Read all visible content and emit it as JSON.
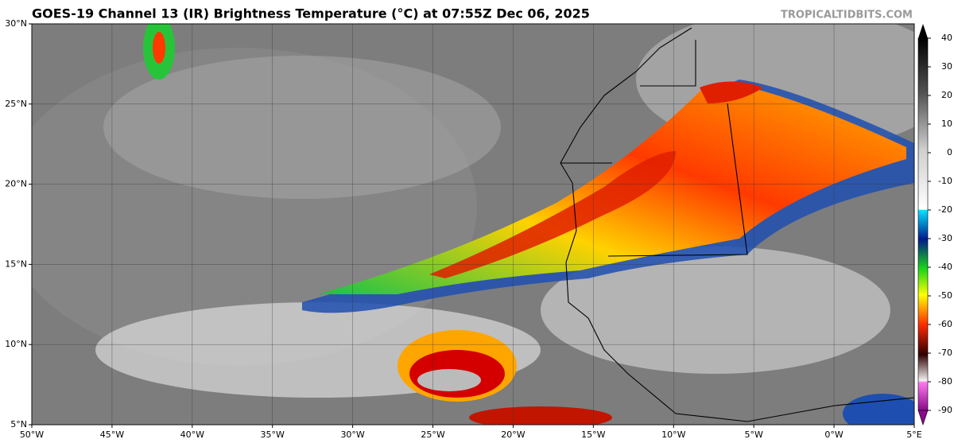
{
  "header": {
    "title": "GOES-19 Channel 13 (IR) Brightness Temperature (°C) at 07:55Z Dec 06, 2025",
    "credit": "TROPICALTIDBITS.COM"
  },
  "map": {
    "lon_ticks": [
      {
        "value": -50,
        "label": "50°W"
      },
      {
        "value": -45,
        "label": "45°W"
      },
      {
        "value": -40,
        "label": "40°W"
      },
      {
        "value": -35,
        "label": "35°W"
      },
      {
        "value": -30,
        "label": "30°W"
      },
      {
        "value": -25,
        "label": "25°W"
      },
      {
        "value": -20,
        "label": "20°W"
      },
      {
        "value": -15,
        "label": "15°W"
      },
      {
        "value": -10,
        "label": "10°W"
      },
      {
        "value": -5,
        "label": "5°W"
      },
      {
        "value": 0,
        "label": "0°W"
      },
      {
        "value": 5,
        "label": "5°E"
      }
    ],
    "lat_ticks": [
      {
        "value": 30,
        "label": "30°N"
      },
      {
        "value": 25,
        "label": "25°N"
      },
      {
        "value": 20,
        "label": "20°N"
      },
      {
        "value": 15,
        "label": "15°N"
      },
      {
        "value": 10,
        "label": "10°N"
      },
      {
        "value": 5,
        "label": "5°N"
      }
    ]
  },
  "colorbar": {
    "ticks": [
      40,
      30,
      20,
      10,
      0,
      -10,
      -20,
      -30,
      -40,
      -50,
      -60,
      -70,
      -80,
      -90
    ]
  }
}
